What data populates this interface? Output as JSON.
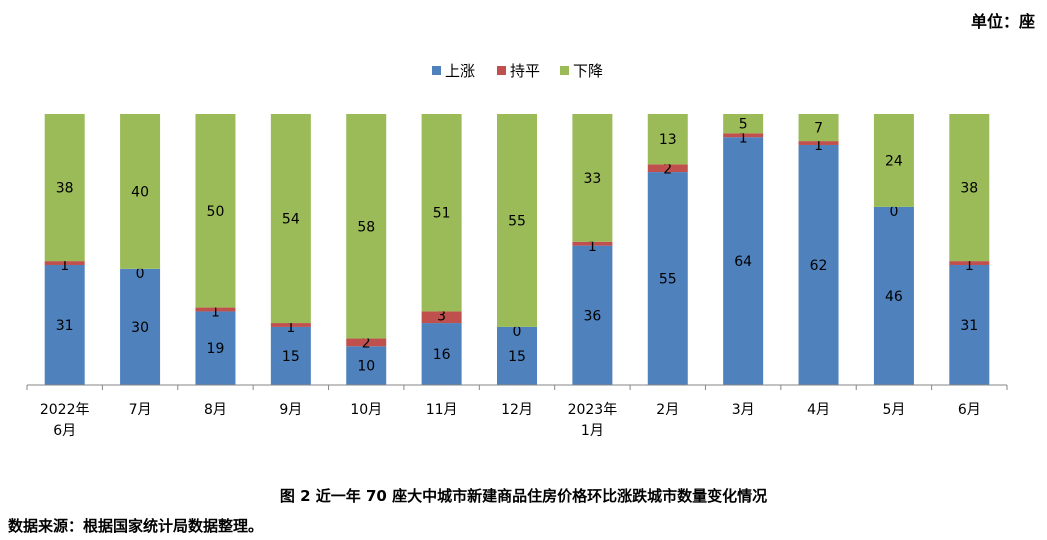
{
  "unit_label": "单位：座",
  "caption": "图 2   近一年 70 座大中城市新建商品住房价格环比涨跌城市数量变化情况",
  "source": "数据来源：根据国家统计局数据整理。",
  "colors": {
    "上涨": "#4F81BD",
    "持平": "#C0504D",
    "下降": "#9BBB59"
  },
  "chart_data": {
    "type": "bar",
    "stacked": true,
    "categories": [
      [
        "2022年",
        "6月"
      ],
      [
        "7月"
      ],
      [
        "8月"
      ],
      [
        "9月"
      ],
      [
        "10月"
      ],
      [
        "11月"
      ],
      [
        "12月"
      ],
      [
        "2023年",
        "1月"
      ],
      [
        "2月"
      ],
      [
        "3月"
      ],
      [
        "4月"
      ],
      [
        "5月"
      ],
      [
        "6月"
      ]
    ],
    "series": [
      {
        "name": "上涨",
        "color": "#4F81BD",
        "values": [
          31,
          30,
          19,
          15,
          10,
          16,
          15,
          36,
          55,
          64,
          62,
          46,
          31
        ]
      },
      {
        "name": "持平",
        "color": "#C0504D",
        "values": [
          1,
          0,
          1,
          1,
          2,
          3,
          0,
          1,
          2,
          1,
          1,
          0,
          1
        ]
      },
      {
        "name": "下降",
        "color": "#9BBB59",
        "values": [
          38,
          40,
          50,
          54,
          58,
          51,
          55,
          33,
          13,
          5,
          7,
          24,
          38
        ]
      }
    ],
    "ylim": [
      0,
      70
    ],
    "legend_position": "top-center",
    "grid": false
  }
}
